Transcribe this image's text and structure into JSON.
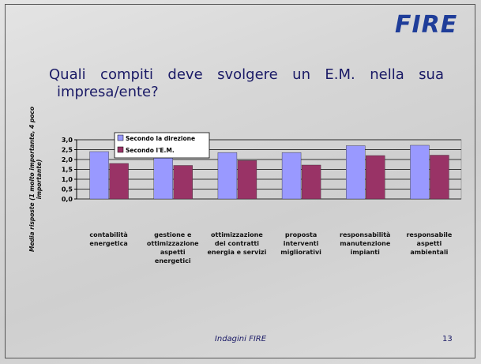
{
  "logo": "FIRE",
  "footer": "Indagini FIRE",
  "page_number": "13",
  "chart_data": {
    "type": "bar",
    "title": "Quali compiti deve svolgere un E.M. nella sua impresa/ente?",
    "y_label": "Media risposte (1 molto importante, 4 poco importante)",
    "categories": [
      "contabilità energetica",
      "gestione e ottimizzazione aspetti energetici",
      "ottimizzazione dei contratti energia e servizi",
      "proposta interventi migliorativi",
      "responsabilità manutenzione impianti",
      "responsabile aspetti ambientali"
    ],
    "series": [
      {
        "name": "Secondo la direzione",
        "color": "#9999ff",
        "values": [
          2.4,
          2.25,
          2.35,
          2.35,
          2.7,
          2.72
        ]
      },
      {
        "name": "Secondo l'E.M.",
        "color": "#993366",
        "values": [
          1.8,
          1.7,
          1.95,
          1.72,
          2.2,
          2.22
        ]
      }
    ],
    "ylim": [
      0,
      3
    ],
    "yticks": [
      {
        "value": 0,
        "label": "0,0"
      },
      {
        "value": 0.5,
        "label": "0,5"
      },
      {
        "value": 1,
        "label": "1,0"
      },
      {
        "value": 1.5,
        "label": "1,5"
      },
      {
        "value": 2,
        "label": "2,0"
      },
      {
        "value": 2.5,
        "label": "2,5"
      },
      {
        "value": 3,
        "label": "3,0"
      }
    ],
    "grid": true,
    "legend": "top-left"
  }
}
